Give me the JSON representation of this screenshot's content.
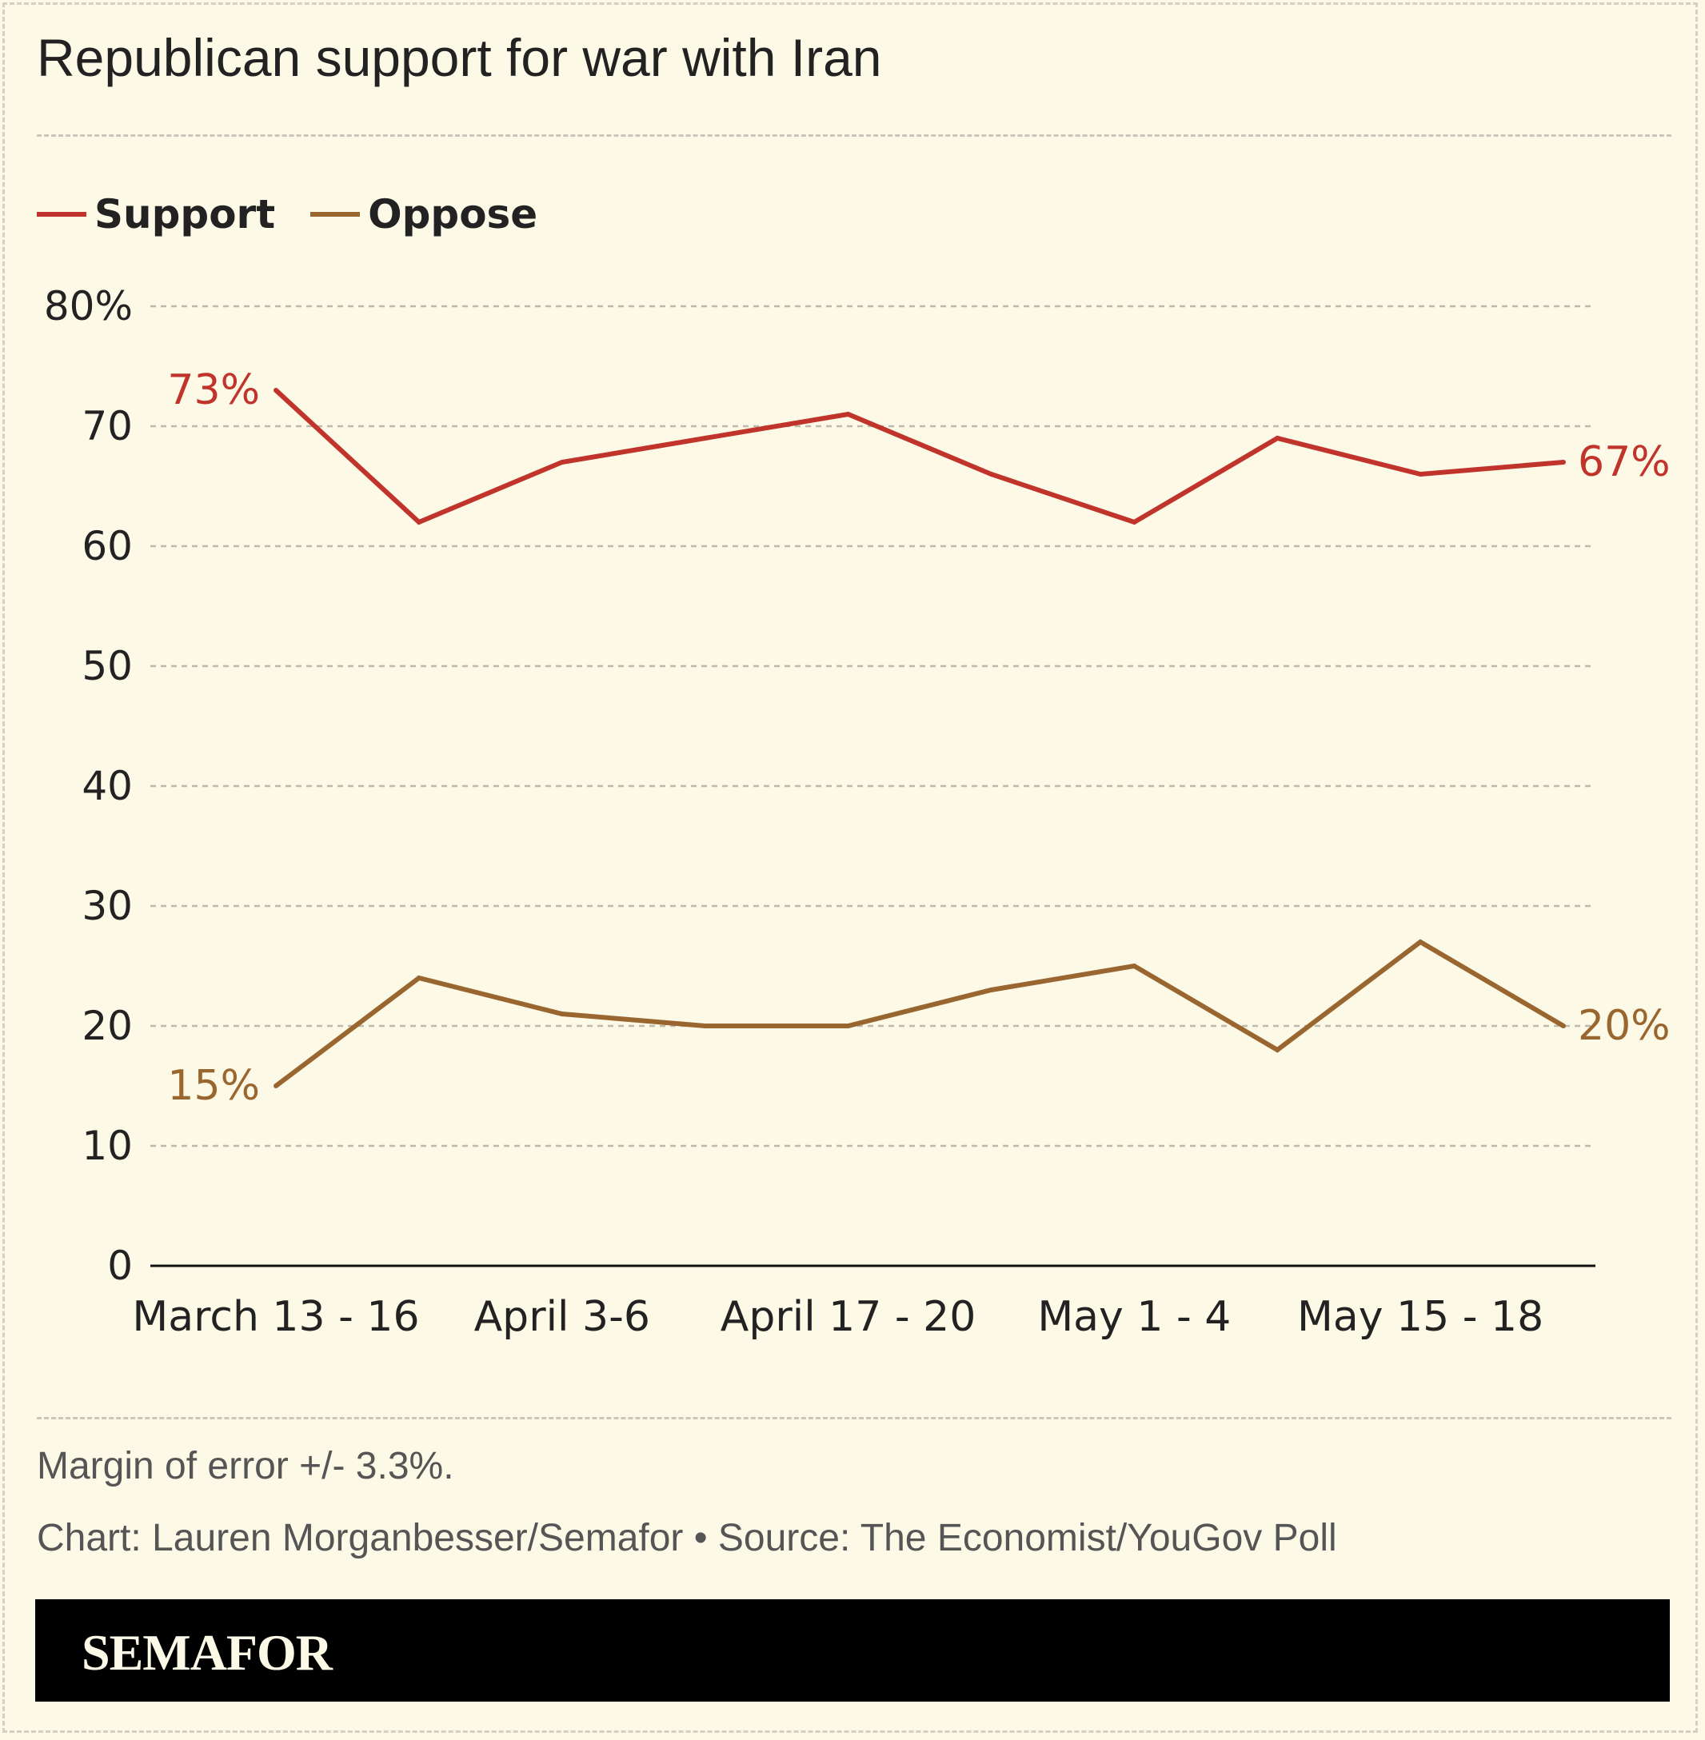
{
  "header": {
    "title": "Republican support for war with Iran"
  },
  "legend": [
    {
      "label": "Support",
      "color": "#c0342b"
    },
    {
      "label": "Oppose",
      "color": "#9a6630"
    }
  ],
  "chart_data": {
    "type": "line",
    "title": "Republican support for war with Iran",
    "x_labels": [
      "March 13 - 16",
      "April 3-6",
      "April 17 - 20",
      "May 1 - 4",
      "May 15 - 18"
    ],
    "x_label_positions": [
      0,
      2,
      4,
      6,
      8
    ],
    "y_ticks": [
      "0",
      "10",
      "20",
      "30",
      "40",
      "50",
      "60",
      "70",
      "80%"
    ],
    "ylim": [
      0,
      80
    ],
    "grid": true,
    "legend_position": "top-left",
    "series": [
      {
        "name": "Support",
        "color": "#c0342b",
        "values": [
          73,
          62,
          67,
          69,
          71,
          66,
          62,
          69,
          66,
          67
        ],
        "start_label": "73%",
        "end_label": "67%"
      },
      {
        "name": "Oppose",
        "color": "#9a6630",
        "values": [
          15,
          24,
          21,
          20,
          20,
          23,
          25,
          18,
          27,
          20
        ],
        "start_label": "15%",
        "end_label": "20%"
      }
    ]
  },
  "footer": {
    "note": "Margin of error +/- 3.3%.",
    "credit": "Chart: Lauren Morganbesser/Semafor • Source: The Economist/YouGov Poll",
    "brand": "SEMAFOR"
  }
}
